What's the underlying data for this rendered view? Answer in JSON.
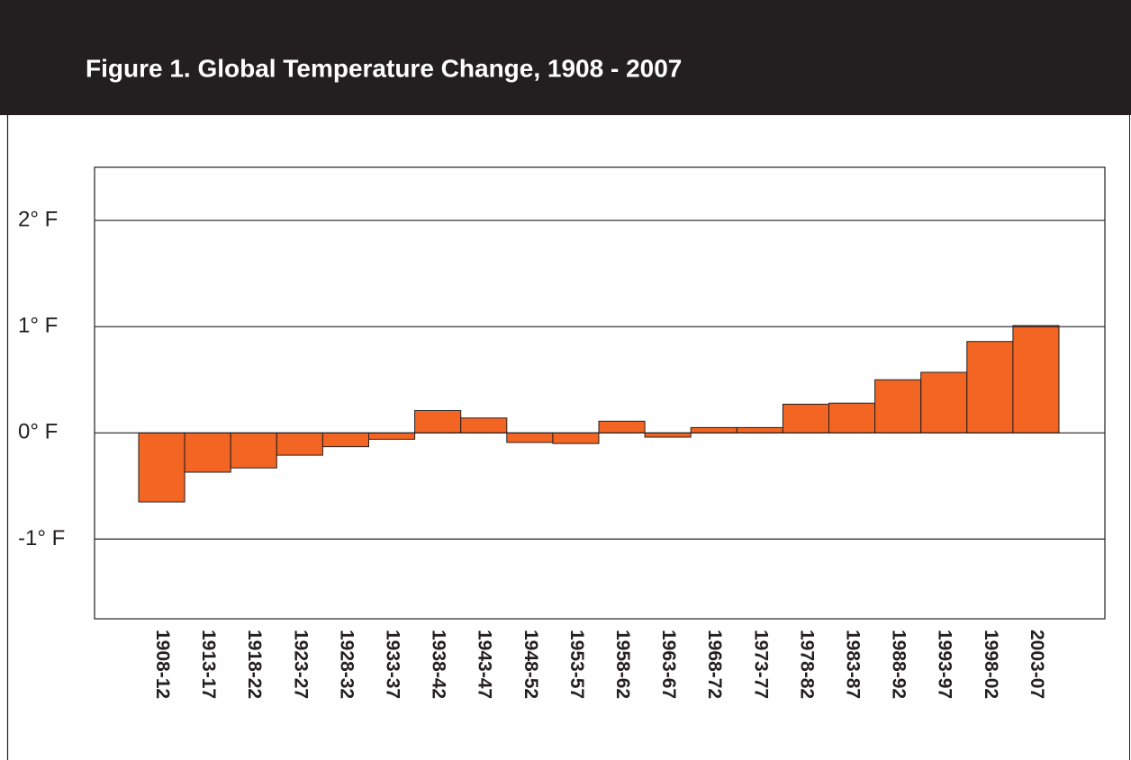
{
  "chart_data": {
    "type": "bar",
    "title": "Figure 1. Global Temperature Change, 1908 - 2007",
    "categories": [
      "1908-12",
      "1913-17",
      "1918-22",
      "1923-27",
      "1928-32",
      "1933-37",
      "1938-42",
      "1943-47",
      "1948-52",
      "1953-57",
      "1958-62",
      "1963-67",
      "1968-72",
      "1973-77",
      "1978-82",
      "1983-87",
      "1988-92",
      "1993-97",
      "1998-02",
      "2003-07"
    ],
    "values": [
      -0.65,
      -0.37,
      -0.33,
      -0.21,
      -0.13,
      -0.06,
      0.21,
      0.14,
      -0.09,
      -0.1,
      0.11,
      -0.04,
      0.05,
      0.05,
      0.27,
      0.28,
      0.5,
      0.57,
      0.86,
      1.01
    ],
    "color": "#f26522",
    "ylim": [
      -1.75,
      2.5
    ],
    "yticks": [
      {
        "value": -1,
        "label": "-1° F"
      },
      {
        "value": 0,
        "label": "0° F"
      },
      {
        "value": 1,
        "label": "1° F"
      },
      {
        "value": 2,
        "label": "2° F"
      }
    ],
    "grid": true
  }
}
